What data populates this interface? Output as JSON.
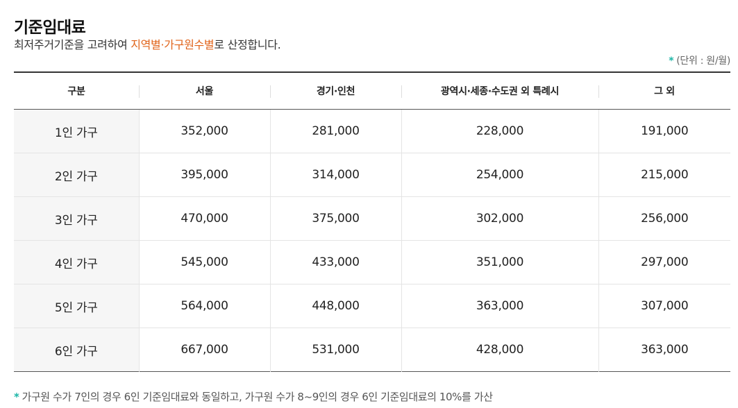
{
  "title": "기준임대료",
  "description": {
    "prefix": "최저주거기준을 고려하여 ",
    "highlight": "지역별·가구원수별",
    "suffix": "로 산정합니다."
  },
  "unit_note": {
    "marker": "*",
    "text": "(단위 : 원/월)"
  },
  "colors": {
    "highlight": "#e0631a",
    "marker": "#1bb5a6"
  },
  "table": {
    "headers": [
      "구분",
      "서울",
      "경기·인천",
      "광역시·세종·수도권 외 특례시",
      "그 외"
    ],
    "rows": [
      [
        "1인 가구",
        "352,000",
        "281,000",
        "228,000",
        "191,000"
      ],
      [
        "2인 가구",
        "395,000",
        "314,000",
        "254,000",
        "215,000"
      ],
      [
        "3인 가구",
        "470,000",
        "375,000",
        "302,000",
        "256,000"
      ],
      [
        "4인 가구",
        "545,000",
        "433,000",
        "351,000",
        "297,000"
      ],
      [
        "5인 가구",
        "564,000",
        "448,000",
        "363,000",
        "307,000"
      ],
      [
        "6인 가구",
        "667,000",
        "531,000",
        "428,000",
        "363,000"
      ]
    ]
  },
  "footnote": {
    "marker": "*",
    "text": "가구원 수가 7인의 경우 6인 기준임대료와 동일하고, 가구원 수가 8~9인의 경우 6인 기준임대료의 10%를 가산"
  }
}
